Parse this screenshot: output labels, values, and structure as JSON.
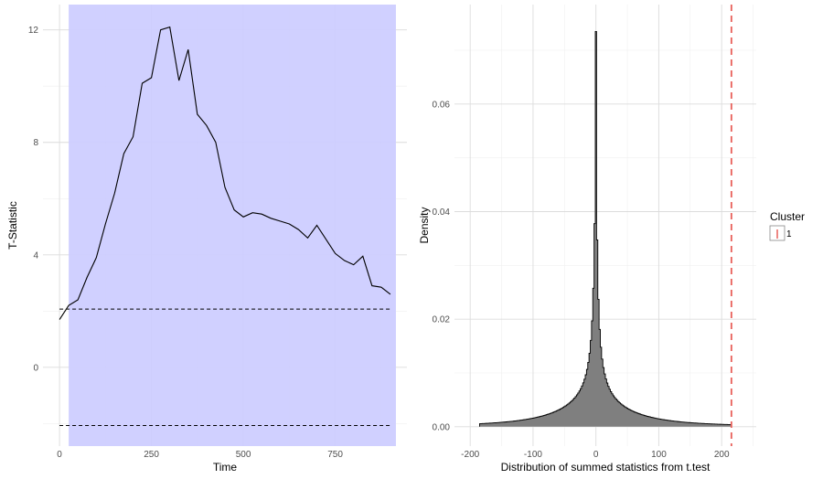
{
  "chart_data": [
    {
      "type": "line",
      "xlabel": "Time",
      "ylabel": "T-Statistic",
      "xlim": [
        -45,
        945
      ],
      "ylim": [
        -2.8,
        12.9
      ],
      "x_ticks": [
        0,
        250,
        500,
        750
      ],
      "y_ticks": [
        0,
        4,
        8,
        12
      ],
      "grid": true,
      "cluster_region": {
        "x": [
          25,
          915
        ],
        "color": "#ccccff"
      },
      "thresholds": [
        2.07,
        -2.07
      ],
      "series": [
        {
          "x": [
            0,
            25,
            50,
            75,
            100,
            125,
            150,
            175,
            200,
            225,
            250,
            275,
            300,
            325,
            350,
            375,
            400,
            425,
            450,
            475,
            500,
            525,
            550,
            575,
            600,
            625,
            650,
            675,
            700,
            725,
            750,
            775,
            800,
            825,
            850,
            875,
            900
          ],
          "values": [
            1.7,
            2.2,
            2.4,
            3.2,
            3.9,
            5.1,
            6.2,
            7.6,
            8.2,
            10.1,
            10.3,
            12.0,
            12.1,
            10.2,
            11.3,
            9.0,
            8.6,
            8.0,
            6.4,
            5.6,
            5.35,
            5.5,
            5.45,
            5.3,
            5.2,
            5.1,
            4.9,
            4.6,
            5.05,
            4.55,
            4.05,
            3.8,
            3.65,
            3.95,
            2.9,
            2.85,
            2.6
          ]
        }
      ]
    },
    {
      "type": "bar",
      "xlabel": "Distribution of summed statistics from t.test",
      "ylabel": "Density",
      "xlim": [
        -225,
        255
      ],
      "ylim": [
        -0.0036,
        0.0785
      ],
      "x_ticks": [
        -200,
        -100,
        0,
        100,
        200
      ],
      "y_ticks": [
        0.0,
        0.02,
        0.04,
        0.06
      ],
      "y_tick_labels": [
        "0.00",
        "0.02",
        "0.04",
        "0.06"
      ],
      "grid": true,
      "histogram": {
        "range": [
          -185,
          215
        ],
        "bin_width": 2,
        "peak_density": 0.0735,
        "fill": "#7f7f7f"
      },
      "observed_statistic": 215.5,
      "vline_color": "#e8605a",
      "legend": {
        "title": "Cluster",
        "entries": [
          "1"
        ],
        "placement": "right"
      }
    }
  ]
}
